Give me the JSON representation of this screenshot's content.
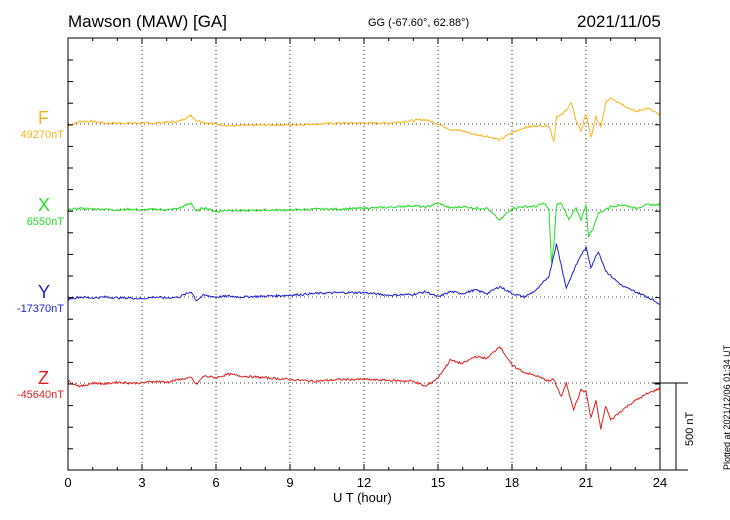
{
  "station": {
    "title": "Mawson (MAW)  [GA]",
    "coords": "GG (-67.60°,  62.88°)",
    "date": "2021/11/05"
  },
  "plotted_text": "Plotted at 2021/12/06 01:34 UT",
  "scale_label": "500 nT",
  "colors": {
    "F": "#f5b51e",
    "X": "#22dd22",
    "Y": "#1f1fd8",
    "Z": "#e01f1f"
  },
  "chart_data": {
    "type": "line",
    "xlabel": "U T (hour)",
    "xlim": [
      0,
      24
    ],
    "xticks": [
      "0",
      "3",
      "6",
      "9",
      "12",
      "15",
      "18",
      "21",
      "24"
    ],
    "scale_nT": 500,
    "series": [
      {
        "name": "F",
        "baseline": "49270nT",
        "x": [
          0,
          0.5,
          1,
          1.5,
          2,
          2.5,
          3,
          3.5,
          4,
          4.5,
          5,
          5.2,
          5.5,
          6,
          6.5,
          7,
          8,
          9,
          10,
          11,
          12,
          13,
          14,
          14.5,
          15,
          15.5,
          16,
          16.5,
          17,
          17.5,
          18,
          18.5,
          19,
          19.5,
          19.7,
          19.8,
          20,
          20.2,
          20.4,
          20.6,
          20.8,
          21,
          21.2,
          21.4,
          21.6,
          21.8,
          22,
          22.5,
          23,
          23.5,
          24
        ],
        "y": [
          -10,
          15,
          15,
          5,
          5,
          5,
          5,
          5,
          10,
          15,
          50,
          20,
          10,
          0,
          -10,
          -10,
          -5,
          -5,
          0,
          5,
          5,
          5,
          20,
          25,
          0,
          -30,
          -40,
          -60,
          -70,
          -90,
          -50,
          -20,
          -10,
          -10,
          -100,
          40,
          50,
          80,
          120,
          20,
          -40,
          60,
          -80,
          40,
          -20,
          120,
          150,
          110,
          70,
          90,
          50
        ]
      },
      {
        "name": "X",
        "baseline": "6550nT",
        "x": [
          0,
          0.5,
          1,
          1.5,
          2,
          2.5,
          3,
          3.5,
          4,
          4.5,
          5,
          5.2,
          5.5,
          6,
          6.5,
          7,
          8,
          9,
          10,
          11,
          12,
          13,
          14,
          14.5,
          15,
          15.5,
          16,
          16.5,
          17,
          17.5,
          18,
          18.5,
          19,
          19.3,
          19.5,
          19.6,
          19.7,
          19.8,
          20,
          20.3,
          20.6,
          20.8,
          21,
          21.1,
          21.3,
          21.5,
          22,
          22.5,
          23,
          23.5,
          24
        ],
        "y": [
          0,
          10,
          5,
          5,
          0,
          5,
          0,
          5,
          0,
          10,
          40,
          -10,
          15,
          -10,
          0,
          -5,
          0,
          0,
          5,
          5,
          10,
          15,
          25,
          15,
          40,
          10,
          20,
          10,
          10,
          -60,
          10,
          20,
          20,
          40,
          0,
          -300,
          -200,
          30,
          40,
          -50,
          10,
          -60,
          30,
          -150,
          -100,
          -20,
          20,
          30,
          10,
          30,
          30
        ]
      },
      {
        "name": "Y",
        "baseline": "-17370nT",
        "x": [
          0,
          0.5,
          1,
          1.5,
          2,
          2.5,
          3,
          3.5,
          4,
          4.5,
          5,
          5.2,
          5.5,
          6,
          6.5,
          7,
          8,
          9,
          10,
          11,
          12,
          13,
          14,
          14.5,
          15,
          15.5,
          16,
          16.5,
          17,
          17.5,
          18,
          18.5,
          19,
          19.5,
          19.8,
          20,
          20.2,
          20.5,
          20.8,
          21,
          21.2,
          21.5,
          21.8,
          22,
          22.5,
          23,
          23.5,
          24
        ],
        "y": [
          -10,
          0,
          -5,
          0,
          -5,
          -5,
          -10,
          0,
          -5,
          0,
          30,
          -20,
          10,
          0,
          5,
          0,
          5,
          10,
          20,
          25,
          25,
          10,
          15,
          30,
          0,
          30,
          20,
          40,
          20,
          60,
          20,
          0,
          40,
          120,
          300,
          180,
          50,
          150,
          240,
          280,
          170,
          260,
          150,
          120,
          60,
          30,
          0,
          -40
        ]
      },
      {
        "name": "Z",
        "baseline": "-45640nT",
        "x": [
          0,
          0.5,
          1,
          1.5,
          2,
          2.5,
          3,
          3.5,
          4,
          4.5,
          5,
          5.2,
          5.5,
          6,
          6.5,
          7,
          8,
          9,
          10,
          11,
          12,
          13,
          14,
          14.5,
          15,
          15.5,
          16,
          16.5,
          17,
          17.5,
          18,
          18.5,
          19,
          19.5,
          19.7,
          20,
          20.2,
          20.5,
          20.8,
          21,
          21.2,
          21.4,
          21.6,
          21.8,
          22,
          22.5,
          23,
          23.5,
          24
        ],
        "y": [
          10,
          -20,
          0,
          -5,
          5,
          0,
          0,
          10,
          5,
          20,
          30,
          -10,
          40,
          30,
          50,
          40,
          30,
          20,
          10,
          20,
          20,
          15,
          10,
          -20,
          30,
          130,
          110,
          150,
          140,
          210,
          100,
          60,
          40,
          10,
          20,
          -80,
          0,
          -150,
          -40,
          -50,
          -200,
          -100,
          -260,
          -130,
          -210,
          -150,
          -100,
          -60,
          -30
        ]
      }
    ]
  }
}
